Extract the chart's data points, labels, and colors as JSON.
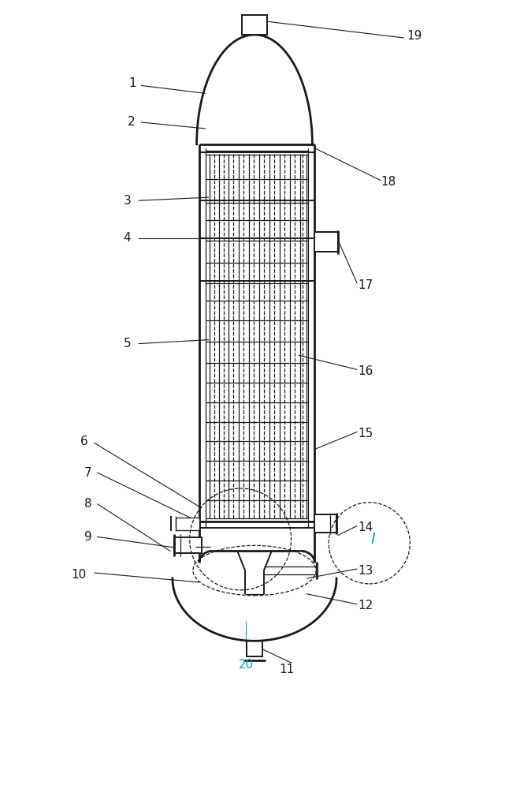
{
  "bg_color": "#ffffff",
  "line_color": "#1a1a1a",
  "label_color": "#000000",
  "special_label_color": "#1a9bbf",
  "fig_width": 6.46,
  "fig_height": 10.0
}
